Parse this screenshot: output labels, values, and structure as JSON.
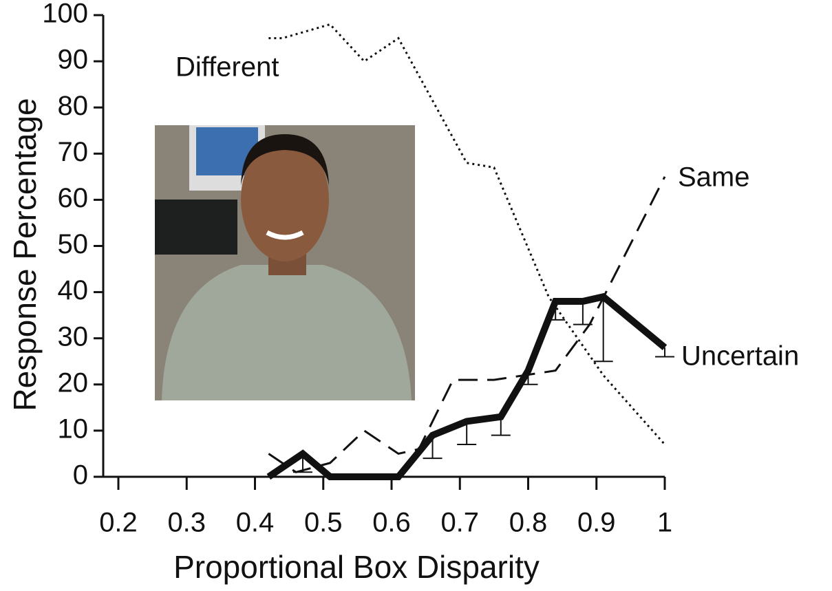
{
  "chart_data": {
    "type": "line",
    "xlabel": "Proportional Box Disparity",
    "ylabel": "Response Percentage",
    "xlim": [
      0.2,
      1
    ],
    "xticks": [
      0.2,
      0.3,
      0.4,
      0.5,
      0.6,
      0.7,
      0.8,
      0.9,
      1
    ],
    "ylim": [
      0,
      100
    ],
    "yticks": [
      0,
      10,
      20,
      30,
      40,
      50,
      60,
      70,
      80,
      90,
      100
    ],
    "series": [
      {
        "name": "Different",
        "color": "#111111",
        "style": "dotted",
        "x": [
          0.42,
          0.44,
          0.51,
          0.56,
          0.61,
          0.71,
          0.75,
          0.83,
          0.91,
          1
        ],
        "values": [
          95,
          95,
          98,
          90,
          95,
          68,
          67,
          39,
          22,
          7
        ]
      },
      {
        "name": "Same",
        "color": "#111111",
        "style": "dashed",
        "x": [
          0.42,
          0.46,
          0.51,
          0.56,
          0.61,
          0.64,
          0.69,
          0.75,
          0.84,
          0.89,
          1
        ],
        "values": [
          5,
          1,
          3,
          10,
          5,
          6,
          21,
          21,
          23,
          33,
          65
        ]
      },
      {
        "name": "Uncertain",
        "color": "#111111",
        "style": "solid",
        "x": [
          0.42,
          0.47,
          0.51,
          0.61,
          0.66,
          0.71,
          0.76,
          0.8,
          0.84,
          0.88,
          0.91,
          1
        ],
        "values": [
          0,
          5,
          0,
          0,
          9,
          12,
          13,
          23,
          38,
          38,
          39,
          28
        ],
        "errors": [
          null,
          4,
          null,
          null,
          5,
          5,
          4,
          3,
          4,
          5,
          14,
          2
        ]
      }
    ]
  }
}
